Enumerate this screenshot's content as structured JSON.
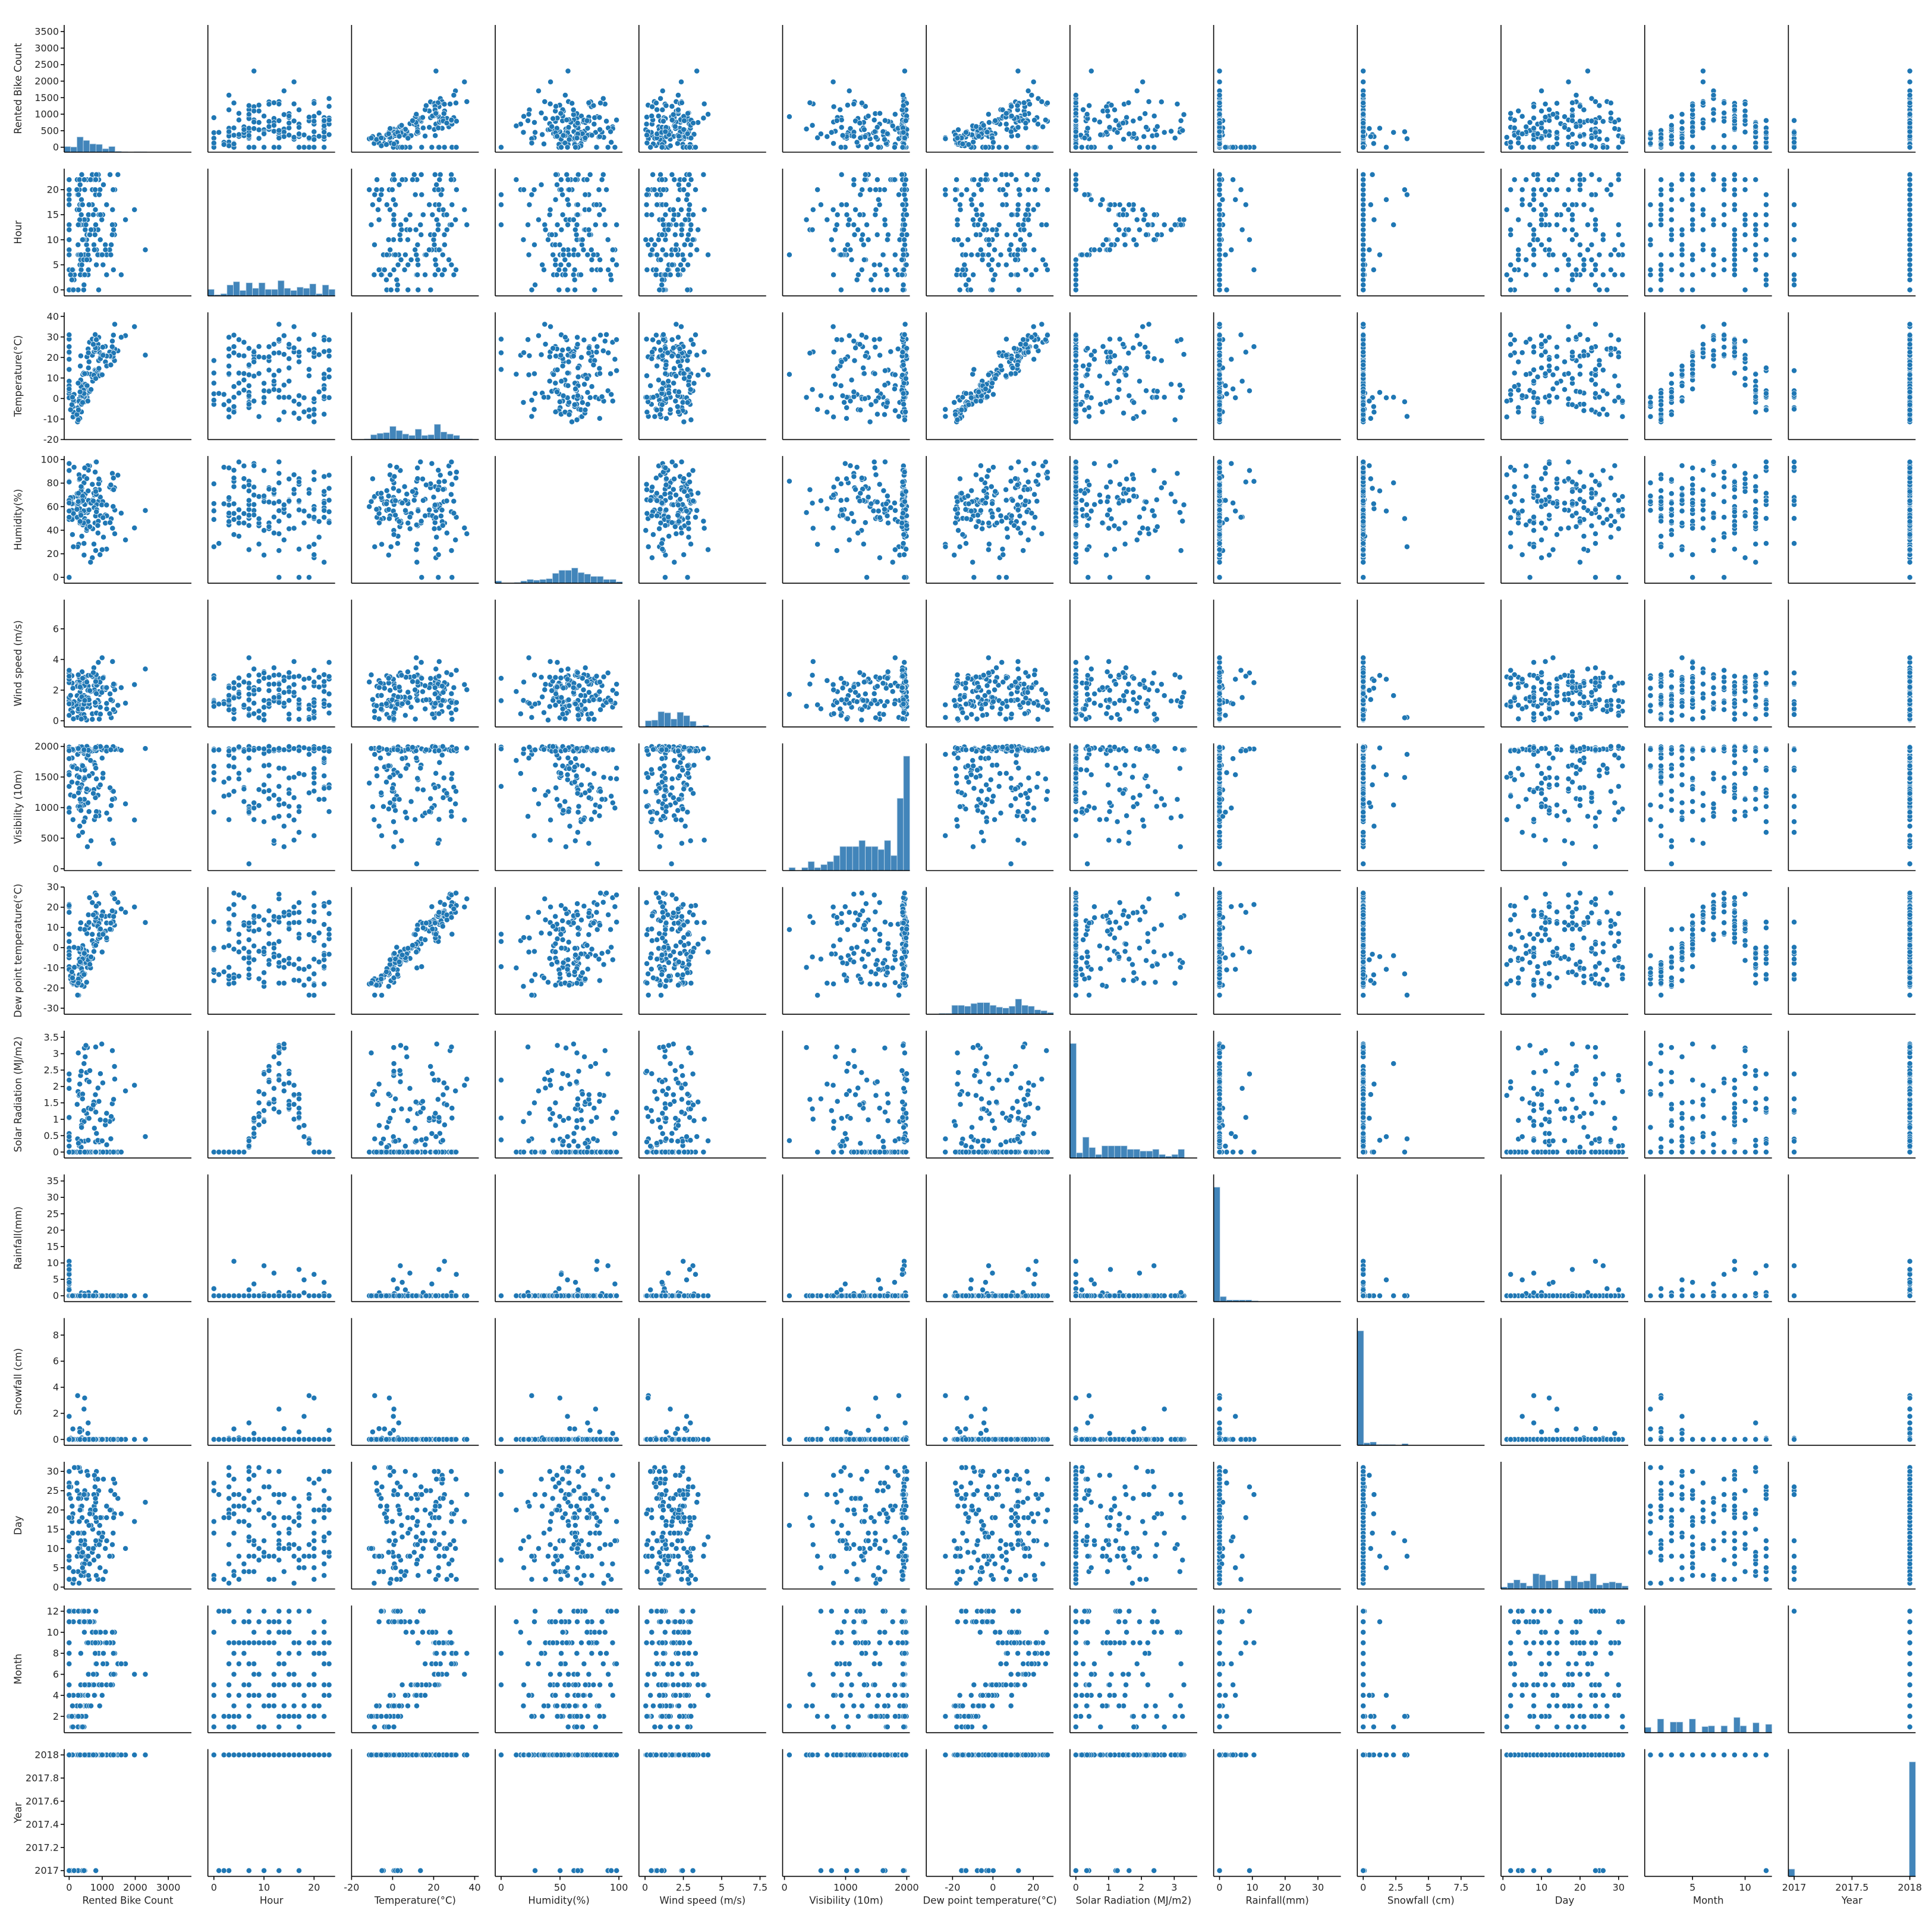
{
  "chart_data": {
    "type": "scatter",
    "variables": [
      {
        "name": "Rented Bike Count",
        "range": [
          -150,
          3700
        ],
        "ticks": [
          0,
          500,
          1000,
          1500,
          2000,
          2500,
          3000,
          3500
        ],
        "ticks_x": [
          0,
          1000,
          2000,
          3000
        ]
      },
      {
        "name": "Hour",
        "range": [
          -1.2,
          24.2
        ],
        "ticks": [
          0,
          5,
          10,
          15,
          20
        ],
        "ticks_x": [
          0,
          10,
          20
        ]
      },
      {
        "name": "Temperature(°C)",
        "range": [
          -20,
          42
        ],
        "ticks": [
          -20,
          -10,
          0,
          10,
          20,
          30,
          40
        ],
        "ticks_x": [
          -20,
          0,
          20,
          40
        ]
      },
      {
        "name": "Humidity(%)",
        "range": [
          -5,
          103
        ],
        "ticks": [
          0,
          20,
          40,
          60,
          80,
          100
        ],
        "ticks_x": [
          0,
          50,
          100
        ]
      },
      {
        "name": "Wind speed (m/s)",
        "range": [
          -0.4,
          7.9
        ],
        "ticks": [
          0,
          2,
          4,
          6
        ],
        "ticks_x": [
          0.0,
          2.5,
          5.0,
          7.5
        ]
      },
      {
        "name": "Visibility (10m)",
        "range": [
          -30,
          2050
        ],
        "ticks": [
          0,
          500,
          1000,
          1500,
          2000
        ],
        "ticks_x": [
          0,
          1000,
          2000
        ]
      },
      {
        "name": "Dew point temperature(°C)",
        "range": [
          -33,
          30
        ],
        "ticks": [
          -30,
          -20,
          -10,
          0,
          10,
          20,
          30
        ],
        "ticks_x": [
          -20,
          0,
          20
        ]
      },
      {
        "name": "Solar Radiation (MJ/m2)",
        "range": [
          -0.18,
          3.7
        ],
        "ticks": [
          0.0,
          0.5,
          1.0,
          1.5,
          2.0,
          2.5,
          3.0,
          3.5
        ],
        "ticks_x": [
          0,
          1,
          2,
          3
        ]
      },
      {
        "name": "Rainfall(mm)",
        "range": [
          -1.8,
          37
        ],
        "ticks": [
          0,
          5,
          10,
          15,
          20,
          25,
          30,
          35
        ],
        "ticks_x": [
          0,
          10,
          20,
          30
        ]
      },
      {
        "name": "Snowfall (cm)",
        "range": [
          -0.45,
          9.3
        ],
        "ticks": [
          0,
          2,
          4,
          6,
          8
        ],
        "ticks_x": [
          0.0,
          2.5,
          5.0,
          7.5
        ]
      },
      {
        "name": "Day",
        "range": [
          -0.5,
          32.5
        ],
        "ticks": [
          0,
          5,
          10,
          15,
          20,
          25,
          30
        ],
        "ticks_x": [
          0,
          10,
          20,
          30
        ]
      },
      {
        "name": "Month",
        "range": [
          0.45,
          12.55
        ],
        "ticks": [
          2,
          4,
          6,
          8,
          10,
          12
        ],
        "ticks_x": [
          5,
          10
        ]
      },
      {
        "name": "Year",
        "range": [
          2016.95,
          2018.05
        ],
        "ticks": [
          2017.0,
          2017.2,
          2017.4,
          2017.6,
          2017.8,
          2018.0
        ],
        "ticks_x": [
          2017.0,
          2017.5,
          2018.0
        ]
      }
    ],
    "diagonal": "histogram",
    "grid": false,
    "color": "#1f77b4"
  }
}
